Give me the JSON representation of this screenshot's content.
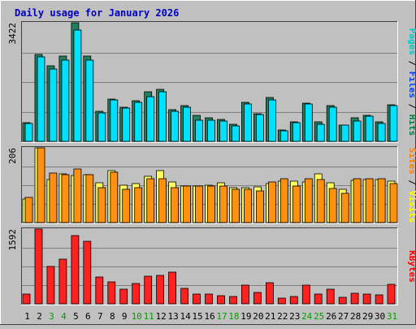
{
  "chart_data": {
    "type": "bar",
    "title": "Daily usage for January 2026",
    "days": [
      "1",
      "2",
      "3",
      "4",
      "5",
      "6",
      "7",
      "8",
      "9",
      "10",
      "11",
      "12",
      "13",
      "14",
      "15",
      "16",
      "17",
      "18",
      "19",
      "20",
      "21",
      "22",
      "23",
      "24",
      "25",
      "26",
      "27",
      "28",
      "29",
      "30",
      "31"
    ],
    "weekend_days": [
      "3",
      "4",
      "10",
      "11",
      "17",
      "18",
      "24",
      "25",
      "31"
    ],
    "panels": [
      {
        "name": "hits-files-pages",
        "ymax_label": "3422",
        "ymax": 3422,
        "side_label": {
          "parts": [
            {
              "text": "Pages",
              "color": "#00c8c8"
            },
            {
              "text": " / ",
              "color": "#000000"
            },
            {
              "text": "Files",
              "color": "#0040ff"
            },
            {
              "text": " / ",
              "color": "#000000"
            },
            {
              "text": "Hits",
              "color": "#008040"
            }
          ]
        },
        "series": [
          {
            "name": "Hits",
            "color": "#208060",
            "values": [
              532,
              2515,
              2170,
              2455,
              3422,
              2455,
              860,
              1220,
              990,
              1170,
              1430,
              1500,
              920,
              1040,
              750,
              680,
              625,
              490,
              1120,
              805,
              1270,
              330,
              570,
              1100,
              560,
              1030,
              475,
              670,
              740,
              565,
              1060
            ]
          },
          {
            "name": "Files",
            "color": "#00e0ff",
            "values": [
              520,
              2440,
              2080,
              2340,
              3220,
              2340,
              830,
              1185,
              960,
              1130,
              1300,
              1430,
              870,
              980,
              600,
              610,
              590,
              440,
              1080,
              770,
              1200,
              310,
              535,
              1070,
              500,
              980,
              460,
              590,
              715,
              520,
              1040
            ]
          }
        ]
      },
      {
        "name": "visits-sites",
        "ymax_label": "206",
        "ymax": 206,
        "side_label": {
          "parts": [
            {
              "text": "Sites",
              "color": "#ff8000"
            },
            {
              "text": " / ",
              "color": "#000000"
            },
            {
              "text": "Visits",
              "color": "#ffff00"
            }
          ]
        },
        "series": [
          {
            "name": "Visits",
            "color": "#ffff60",
            "values": [
              66,
              206,
              118,
              134,
              130,
              133,
              109,
              144,
              102,
              108,
              128,
              144,
              113,
              100,
              101,
              103,
              110,
              97,
              97,
              98,
              108,
              114,
              114,
              113,
              134,
              110,
              91,
              116,
              118,
              118,
              114
            ]
          },
          {
            "name": "Sites",
            "color": "#ff9010",
            "values": [
              70,
              206,
              136,
              133,
              148,
              133,
              96,
              138,
              92,
              96,
              120,
              120,
              96,
              101,
              101,
              101,
              100,
              91,
              91,
              88,
              113,
              122,
              101,
              120,
              118,
              93,
              80,
              122,
              120,
              120,
              108
            ]
          }
        ]
      },
      {
        "name": "kbytes",
        "ymax_label": "1592",
        "ymax": 1592,
        "side_label": {
          "parts": [
            {
              "text": "KBytes",
              "color": "#ff0000"
            }
          ]
        },
        "series": [
          {
            "name": "KBytes",
            "color": "#ff2020",
            "values": [
              200,
              1592,
              800,
              960,
              1460,
              1340,
              570,
              470,
              320,
              440,
              580,
              600,
              670,
              330,
              210,
              210,
              180,
              150,
              400,
              240,
              450,
              120,
              160,
              400,
              200,
              320,
              130,
              220,
              210,
              190,
              410
            ]
          }
        ]
      }
    ]
  }
}
